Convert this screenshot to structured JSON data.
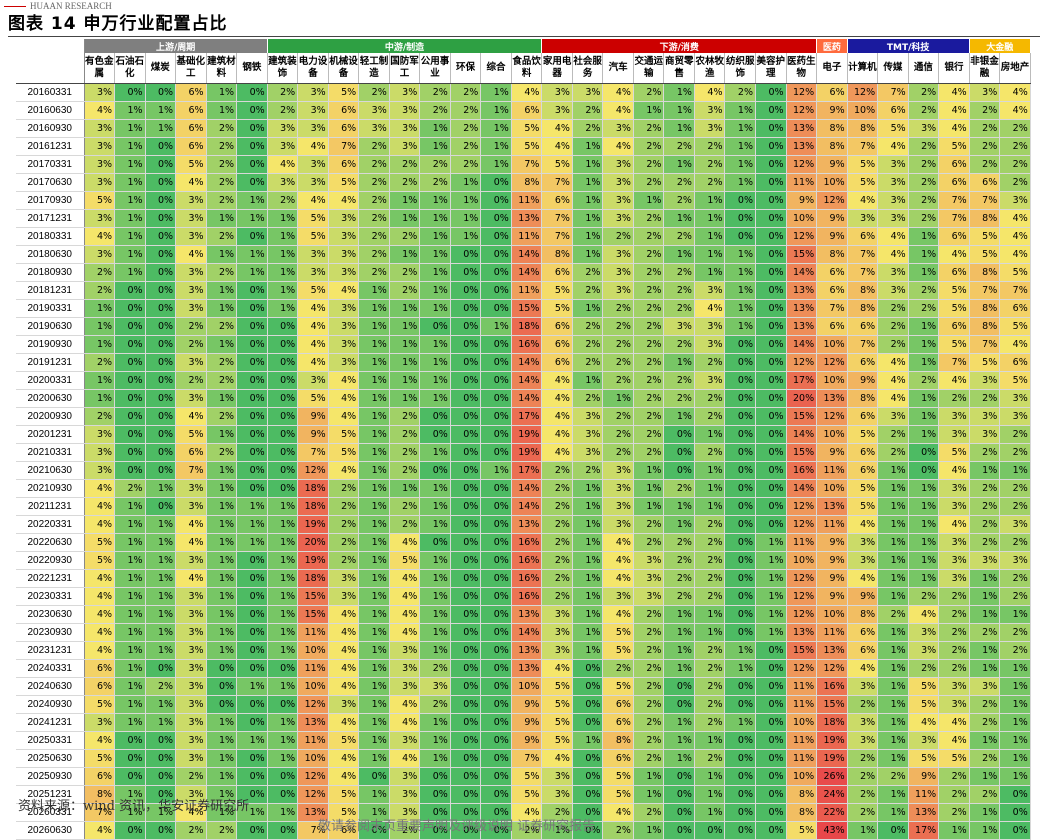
{
  "header": {
    "brand": "HUAAN RESEARCH",
    "title": "图表 14 申万行业配置占比"
  },
  "groups": [
    {
      "label": "上游/周期",
      "span": 6,
      "color": "#7f7f7f"
    },
    {
      "label": "中游/制造",
      "span": 9,
      "color": "#2ea043"
    },
    {
      "label": "下游/消费",
      "span": 9,
      "color": "#cc0000"
    },
    {
      "label": "医药",
      "span": 1,
      "color": "#ff6a3d"
    },
    {
      "label": "TMT/科技",
      "span": 4,
      "color": "#1a1a9e"
    },
    {
      "label": "大金融",
      "span": 3,
      "color": "#f5b800"
    }
  ],
  "columns": [
    "有色金属",
    "石油石化",
    "煤炭",
    "基础化工",
    "建筑材料",
    "钢铁",
    "建筑装饰",
    "电力设备",
    "机械设备",
    "轻工制造",
    "国防军工",
    "公用事业",
    "环保",
    "综合",
    "食品饮料",
    "家用电器",
    "社会服务",
    "汽车",
    "交通运输",
    "商贸零售",
    "农林牧渔",
    "纺织服饰",
    "美容护理",
    "医药生物",
    "电子",
    "计算机",
    "传媒",
    "通信",
    "银行",
    "非银金融",
    "房地产"
  ],
  "dates": [
    "20160331",
    "20160630",
    "20160930",
    "20161231",
    "20170331",
    "20170630",
    "20170930",
    "20171231",
    "20180331",
    "20180630",
    "20180930",
    "20181231",
    "20190331",
    "20190630",
    "20190930",
    "20191231",
    "20200331",
    "20200630",
    "20200930",
    "20201231",
    "20210331",
    "20210630",
    "20210930",
    "20211231",
    "20220331",
    "20220630",
    "20220930",
    "20221231",
    "20230331",
    "20230630",
    "20230930",
    "20231231",
    "20240331",
    "20240630",
    "20240930",
    "20241231",
    "20250331",
    "20250630",
    "20250930",
    "20251231",
    "20260331",
    "20260630"
  ],
  "values": [
    [
      3,
      0,
      0,
      6,
      1,
      0,
      2,
      3,
      5,
      2,
      3,
      2,
      2,
      1,
      4,
      3,
      3,
      4,
      2,
      1,
      4,
      2,
      0,
      12,
      6,
      12,
      7,
      2,
      4,
      3,
      4
    ],
    [
      4,
      1,
      1,
      6,
      1,
      0,
      2,
      3,
      6,
      3,
      3,
      2,
      2,
      1,
      6,
      3,
      2,
      4,
      1,
      1,
      3,
      1,
      0,
      12,
      9,
      10,
      6,
      2,
      4,
      2,
      4
    ],
    [
      3,
      1,
      1,
      6,
      2,
      0,
      3,
      3,
      6,
      3,
      3,
      1,
      2,
      1,
      5,
      4,
      2,
      3,
      2,
      1,
      3,
      1,
      0,
      13,
      8,
      8,
      5,
      3,
      4,
      2,
      2
    ],
    [
      3,
      1,
      0,
      6,
      2,
      0,
      3,
      4,
      7,
      2,
      3,
      1,
      2,
      1,
      5,
      4,
      1,
      4,
      2,
      2,
      2,
      1,
      0,
      13,
      8,
      7,
      4,
      2,
      5,
      2,
      2
    ],
    [
      3,
      1,
      0,
      5,
      2,
      0,
      4,
      3,
      6,
      2,
      2,
      2,
      2,
      1,
      7,
      5,
      1,
      3,
      2,
      1,
      2,
      1,
      0,
      12,
      9,
      5,
      3,
      2,
      6,
      2,
      2
    ],
    [
      3,
      1,
      0,
      4,
      2,
      0,
      3,
      3,
      5,
      2,
      2,
      2,
      1,
      0,
      8,
      7,
      1,
      3,
      2,
      2,
      2,
      1,
      0,
      11,
      10,
      5,
      3,
      2,
      6,
      6,
      2
    ],
    [
      5,
      1,
      0,
      3,
      2,
      1,
      2,
      4,
      4,
      2,
      1,
      1,
      1,
      0,
      11,
      6,
      1,
      3,
      1,
      2,
      1,
      0,
      0,
      9,
      12,
      4,
      3,
      2,
      7,
      7,
      3
    ],
    [
      3,
      1,
      0,
      3,
      1,
      1,
      1,
      5,
      3,
      2,
      1,
      1,
      1,
      0,
      13,
      7,
      1,
      3,
      2,
      1,
      1,
      0,
      0,
      10,
      9,
      3,
      3,
      2,
      7,
      8,
      4
    ],
    [
      4,
      1,
      0,
      3,
      2,
      0,
      1,
      5,
      3,
      2,
      2,
      1,
      1,
      0,
      11,
      7,
      1,
      2,
      2,
      2,
      1,
      0,
      0,
      12,
      9,
      6,
      4,
      1,
      6,
      5,
      4
    ],
    [
      3,
      1,
      0,
      4,
      1,
      1,
      1,
      3,
      3,
      2,
      1,
      1,
      0,
      0,
      14,
      8,
      1,
      3,
      2,
      1,
      1,
      1,
      0,
      15,
      8,
      7,
      4,
      1,
      4,
      5,
      4
    ],
    [
      2,
      1,
      0,
      3,
      2,
      1,
      1,
      3,
      3,
      2,
      2,
      1,
      0,
      0,
      14,
      6,
      2,
      3,
      2,
      2,
      1,
      1,
      0,
      14,
      6,
      7,
      3,
      1,
      6,
      8,
      5
    ],
    [
      2,
      0,
      0,
      3,
      1,
      0,
      1,
      5,
      4,
      1,
      2,
      1,
      0,
      0,
      11,
      5,
      2,
      3,
      2,
      2,
      3,
      1,
      0,
      13,
      6,
      8,
      3,
      2,
      5,
      7,
      7
    ],
    [
      1,
      0,
      0,
      3,
      1,
      0,
      1,
      4,
      3,
      1,
      1,
      1,
      0,
      0,
      15,
      5,
      1,
      2,
      2,
      2,
      4,
      1,
      0,
      13,
      7,
      8,
      2,
      2,
      5,
      8,
      6
    ],
    [
      1,
      0,
      0,
      2,
      2,
      0,
      0,
      4,
      3,
      1,
      1,
      0,
      0,
      1,
      18,
      6,
      2,
      2,
      2,
      3,
      3,
      1,
      0,
      13,
      6,
      6,
      2,
      1,
      6,
      8,
      5
    ],
    [
      1,
      0,
      0,
      2,
      1,
      0,
      0,
      4,
      3,
      1,
      1,
      1,
      0,
      0,
      16,
      6,
      2,
      2,
      2,
      2,
      3,
      0,
      0,
      14,
      10,
      7,
      2,
      1,
      5,
      7,
      4
    ],
    [
      2,
      0,
      0,
      3,
      2,
      0,
      0,
      4,
      3,
      1,
      1,
      1,
      0,
      0,
      14,
      6,
      2,
      2,
      2,
      1,
      2,
      0,
      0,
      12,
      12,
      6,
      4,
      1,
      7,
      5,
      6
    ],
    [
      1,
      0,
      0,
      2,
      2,
      0,
      0,
      3,
      4,
      1,
      1,
      1,
      0,
      0,
      14,
      4,
      1,
      2,
      2,
      2,
      3,
      0,
      0,
      17,
      10,
      9,
      4,
      2,
      4,
      3,
      5
    ],
    [
      1,
      0,
      0,
      3,
      1,
      0,
      0,
      5,
      4,
      1,
      1,
      1,
      0,
      0,
      14,
      4,
      2,
      1,
      2,
      2,
      2,
      0,
      0,
      20,
      13,
      8,
      4,
      1,
      2,
      2,
      3
    ],
    [
      2,
      0,
      0,
      4,
      2,
      0,
      0,
      9,
      4,
      1,
      2,
      0,
      0,
      0,
      17,
      4,
      3,
      2,
      2,
      1,
      2,
      0,
      0,
      15,
      12,
      6,
      3,
      1,
      3,
      3,
      3
    ],
    [
      3,
      0,
      0,
      5,
      1,
      0,
      0,
      9,
      5,
      1,
      2,
      0,
      0,
      0,
      19,
      4,
      3,
      2,
      2,
      0,
      1,
      0,
      0,
      14,
      10,
      5,
      2,
      1,
      3,
      3,
      2
    ],
    [
      3,
      0,
      0,
      6,
      2,
      0,
      0,
      7,
      5,
      1,
      2,
      1,
      0,
      0,
      19,
      4,
      3,
      2,
      2,
      0,
      2,
      0,
      0,
      15,
      9,
      6,
      2,
      0,
      5,
      2,
      2
    ],
    [
      3,
      0,
      0,
      7,
      1,
      0,
      0,
      12,
      4,
      1,
      2,
      0,
      0,
      1,
      17,
      2,
      2,
      3,
      1,
      0,
      1,
      0,
      0,
      16,
      11,
      6,
      1,
      0,
      4,
      1,
      1
    ],
    [
      4,
      2,
      1,
      3,
      1,
      0,
      0,
      18,
      2,
      1,
      1,
      1,
      0,
      0,
      14,
      2,
      1,
      3,
      1,
      2,
      1,
      0,
      0,
      14,
      10,
      5,
      1,
      1,
      3,
      2,
      2
    ],
    [
      4,
      1,
      0,
      3,
      1,
      1,
      1,
      18,
      2,
      1,
      2,
      1,
      0,
      0,
      14,
      2,
      1,
      3,
      1,
      1,
      1,
      0,
      0,
      12,
      13,
      5,
      1,
      1,
      3,
      2,
      2
    ],
    [
      4,
      1,
      1,
      4,
      1,
      1,
      1,
      19,
      2,
      1,
      2,
      1,
      0,
      0,
      13,
      2,
      1,
      3,
      2,
      1,
      2,
      0,
      0,
      12,
      11,
      4,
      1,
      1,
      4,
      2,
      3
    ],
    [
      5,
      1,
      1,
      4,
      1,
      1,
      1,
      20,
      2,
      1,
      4,
      0,
      0,
      0,
      16,
      2,
      1,
      4,
      2,
      2,
      2,
      0,
      1,
      11,
      9,
      3,
      1,
      1,
      3,
      2,
      2
    ],
    [
      5,
      1,
      1,
      3,
      1,
      0,
      1,
      19,
      2,
      1,
      5,
      1,
      0,
      0,
      16,
      2,
      1,
      4,
      3,
      2,
      2,
      0,
      1,
      10,
      9,
      3,
      1,
      1,
      3,
      3,
      3
    ],
    [
      4,
      1,
      1,
      4,
      1,
      0,
      1,
      18,
      3,
      1,
      4,
      1,
      0,
      0,
      16,
      2,
      1,
      4,
      3,
      2,
      2,
      0,
      1,
      12,
      9,
      4,
      1,
      1,
      3,
      1,
      2
    ],
    [
      4,
      1,
      1,
      3,
      1,
      0,
      1,
      15,
      3,
      1,
      4,
      1,
      0,
      0,
      16,
      2,
      1,
      3,
      3,
      2,
      2,
      0,
      1,
      12,
      9,
      9,
      1,
      2,
      2,
      1,
      2
    ],
    [
      4,
      1,
      1,
      3,
      1,
      0,
      1,
      15,
      4,
      1,
      4,
      1,
      0,
      0,
      13,
      3,
      1,
      4,
      2,
      1,
      1,
      0,
      1,
      12,
      10,
      8,
      2,
      4,
      2,
      1,
      1
    ],
    [
      4,
      1,
      1,
      3,
      1,
      0,
      1,
      11,
      4,
      1,
      4,
      1,
      0,
      0,
      14,
      3,
      1,
      5,
      2,
      1,
      1,
      0,
      1,
      13,
      11,
      6,
      1,
      3,
      2,
      2,
      2
    ],
    [
      4,
      1,
      1,
      3,
      1,
      0,
      1,
      10,
      4,
      1,
      3,
      1,
      0,
      0,
      13,
      3,
      1,
      5,
      2,
      1,
      2,
      1,
      0,
      15,
      13,
      6,
      1,
      3,
      2,
      1,
      2
    ],
    [
      6,
      1,
      0,
      3,
      0,
      0,
      0,
      11,
      4,
      1,
      3,
      2,
      0,
      0,
      13,
      4,
      0,
      2,
      2,
      1,
      2,
      1,
      0,
      12,
      12,
      4,
      1,
      2,
      2,
      1,
      1
    ],
    [
      6,
      1,
      2,
      3,
      0,
      1,
      1,
      10,
      4,
      1,
      3,
      3,
      0,
      0,
      10,
      5,
      0,
      5,
      2,
      0,
      2,
      0,
      0,
      11,
      16,
      3,
      1,
      5,
      3,
      3,
      1
    ],
    [
      5,
      1,
      1,
      3,
      0,
      0,
      0,
      12,
      3,
      1,
      4,
      2,
      0,
      0,
      9,
      5,
      0,
      6,
      2,
      0,
      2,
      0,
      0,
      11,
      15,
      2,
      1,
      5,
      3,
      2,
      1
    ],
    [
      3,
      1,
      1,
      3,
      1,
      0,
      1,
      13,
      4,
      1,
      4,
      1,
      0,
      0,
      9,
      5,
      0,
      6,
      2,
      1,
      2,
      1,
      0,
      10,
      18,
      3,
      1,
      4,
      4,
      2,
      1
    ],
    [
      4,
      0,
      0,
      3,
      1,
      1,
      1,
      11,
      5,
      1,
      3,
      1,
      0,
      0,
      9,
      5,
      1,
      8,
      2,
      1,
      1,
      0,
      0,
      11,
      19,
      3,
      1,
      3,
      4,
      1,
      1
    ],
    [
      5,
      0,
      0,
      3,
      1,
      0,
      1,
      10,
      4,
      1,
      4,
      1,
      0,
      0,
      7,
      4,
      0,
      6,
      2,
      1,
      2,
      0,
      0,
      11,
      19,
      2,
      1,
      5,
      5,
      2,
      1
    ],
    [
      6,
      0,
      0,
      2,
      1,
      0,
      0,
      12,
      4,
      0,
      3,
      0,
      0,
      0,
      5,
      3,
      0,
      5,
      1,
      0,
      1,
      0,
      0,
      10,
      26,
      2,
      2,
      9,
      2,
      1,
      1
    ],
    [
      8,
      1,
      0,
      3,
      1,
      0,
      0,
      12,
      5,
      1,
      3,
      0,
      0,
      0,
      5,
      3,
      0,
      5,
      1,
      0,
      1,
      0,
      0,
      8,
      24,
      2,
      1,
      11,
      2,
      2,
      0
    ],
    [
      7,
      1,
      1,
      4,
      1,
      1,
      1,
      13,
      5,
      1,
      3,
      0,
      0,
      0,
      4,
      2,
      0,
      4,
      2,
      0,
      1,
      0,
      0,
      8,
      22,
      2,
      1,
      13,
      2,
      1,
      0
    ],
    [
      4,
      0,
      0,
      2,
      2,
      0,
      0,
      7,
      6,
      0,
      2,
      0,
      0,
      0,
      2,
      1,
      0,
      2,
      1,
      0,
      0,
      0,
      0,
      5,
      43,
      1,
      0,
      17,
      1,
      1,
      0
    ]
  ],
  "palette": {
    "low": "#4dbb63",
    "mid": "#f5e66a",
    "high": "#e8474a"
  },
  "source": "资料来源：wind 资讯，华安证券研究所",
  "footer_note": "敬请参阅末页重要声明及评级说明 证券研究报告"
}
